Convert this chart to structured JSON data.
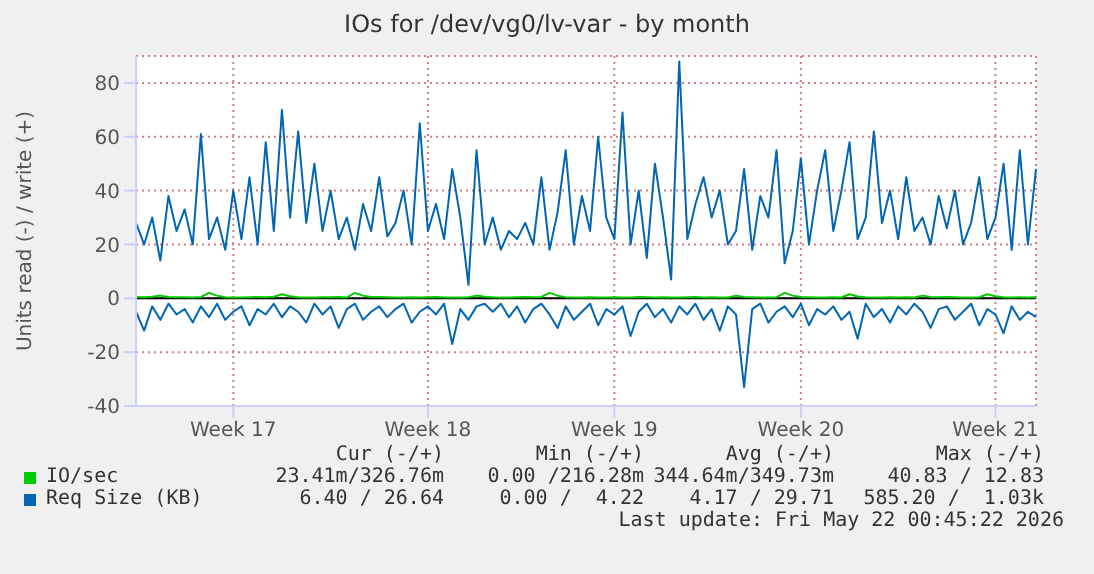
{
  "chart_data": {
    "type": "line",
    "title": "IOs for /dev/vg0/lv-var - by month",
    "ylabel": "Units read (-) / write (+)",
    "categories": [
      null,
      null,
      null,
      null,
      null,
      null,
      null,
      null,
      null,
      null,
      null,
      null,
      "Week 17",
      null,
      null,
      null,
      null,
      null,
      null,
      null,
      null,
      null,
      null,
      null,
      null,
      null,
      null,
      null,
      null,
      null,
      null,
      null,
      null,
      null,
      null,
      null,
      "Week 18",
      null,
      null,
      null,
      null,
      null,
      null,
      null,
      null,
      null,
      null,
      null,
      null,
      null,
      null,
      null,
      null,
      null,
      null,
      null,
      null,
      null,
      null,
      "Week 19",
      null,
      null,
      null,
      null,
      null,
      null,
      null,
      null,
      null,
      null,
      null,
      null,
      null,
      null,
      null,
      null,
      null,
      null,
      null,
      null,
      null,
      null,
      "Week 20",
      null,
      null,
      null,
      null,
      null,
      null,
      null,
      null,
      null,
      null,
      null,
      null,
      null,
      null,
      null,
      null,
      null,
      null,
      null,
      null,
      null,
      null,
      null,
      "Week 21",
      null,
      null,
      null,
      null,
      null
    ],
    "series": [
      {
        "name": "IO/sec",
        "color": "#00cc00",
        "values": [
          0.5,
          0.4,
          0.6,
          1,
          0.5,
          0.4,
          0.4,
          0.3,
          0.5,
          2,
          1,
          0.4,
          0.3,
          0.3,
          0.4,
          0.5,
          0.4,
          0.6,
          1.5,
          0.8,
          0.4,
          0.3,
          0.3,
          0.4,
          0.4,
          0.5,
          0.3,
          2,
          1,
          0.5,
          0.5,
          0.4,
          0.3,
          0.3,
          0.4,
          0.3,
          0.4,
          0.5,
          0.3,
          0.3,
          0.3,
          0.4,
          1,
          0.6,
          0.4,
          0.3,
          0.3,
          0.4,
          0.5,
          0.4,
          0.5,
          2,
          1,
          0.4,
          0.3,
          0.3,
          0.4,
          0.3,
          0.3,
          0.4,
          0.3,
          0.3,
          0.5,
          0.4,
          0.3,
          0.4,
          0.3,
          0.3,
          0.4,
          0.5,
          0.3,
          0.4,
          0.3,
          0.3,
          1,
          0.5,
          0.4,
          0.3,
          0.3,
          0.4,
          2,
          1,
          0.5,
          0.4,
          0.3,
          0.3,
          0.4,
          0.3,
          1.5,
          0.7,
          0.4,
          0.3,
          0.3,
          0.4,
          0.3,
          0.4,
          0.3,
          1,
          0.5,
          0.4,
          0.5,
          0.4,
          0.3,
          0.3,
          0.4,
          1.5,
          0.8,
          0.4,
          0.3,
          0.4,
          0.3,
          0.4
        ]
      },
      {
        "name": "Req Size (KB)",
        "color": "#0066b3",
        "values": [
          28,
          20,
          30,
          14,
          38,
          25,
          33,
          20,
          61,
          22,
          30,
          18,
          40,
          22,
          45,
          20,
          58,
          25,
          70,
          30,
          62,
          28,
          50,
          25,
          40,
          22,
          30,
          18,
          35,
          25,
          45,
          23,
          28,
          40,
          20,
          65,
          25,
          35,
          22,
          48,
          30,
          5,
          55,
          20,
          30,
          18,
          25,
          22,
          28,
          20,
          45,
          18,
          32,
          55,
          20,
          38,
          25,
          60,
          30,
          22,
          69,
          20,
          40,
          15,
          50,
          30,
          7,
          88,
          22,
          35,
          45,
          30,
          40,
          20,
          25,
          48,
          18,
          38,
          30,
          55,
          13,
          25,
          52,
          20,
          40,
          55,
          25,
          40,
          58,
          22,
          30,
          62,
          28,
          40,
          22,
          45,
          25,
          30,
          20,
          38,
          26,
          40,
          20,
          28,
          45,
          22,
          30,
          50,
          18,
          55,
          20,
          48
        ]
      },
      {
        "color": "#0066b3",
        "values": [
          -5,
          -12,
          -3,
          -8,
          -2,
          -6,
          -4,
          -9,
          -3,
          -7,
          -2,
          -8,
          -5,
          -3,
          -10,
          -4,
          -6,
          -2,
          -7,
          -3,
          -5,
          -9,
          -2,
          -6,
          -3,
          -11,
          -4,
          -2,
          -8,
          -5,
          -3,
          -7,
          -4,
          -2,
          -9,
          -5,
          -3,
          -6,
          -2,
          -17,
          -4,
          -8,
          -3,
          -2,
          -5,
          -2,
          -7,
          -3,
          -9,
          -4,
          -2,
          -6,
          -11,
          -3,
          -8,
          -5,
          -2,
          -10,
          -4,
          -6,
          -3,
          -14,
          -5,
          -2,
          -7,
          -4,
          -9,
          -3,
          -6,
          -2,
          -8,
          -4,
          -12,
          -3,
          -6,
          -33,
          -4,
          -2,
          -9,
          -5,
          -3,
          -7,
          -2,
          -10,
          -4,
          -6,
          -3,
          -8,
          -5,
          -15,
          -2,
          -7,
          -4,
          -9,
          -3,
          -6,
          -2,
          -5,
          -11,
          -4,
          -3,
          -8,
          -5,
          -2,
          -10,
          -4,
          -6,
          -13,
          -3,
          -8,
          -5,
          -7
        ]
      }
    ],
    "ylim": [
      -40,
      90
    ],
    "yticks": [
      -40,
      -20,
      0,
      20,
      40,
      60,
      80
    ],
    "grid": true,
    "legend": "bottom",
    "marker": "none",
    "line_style": "solid",
    "ref_lines": [
      {
        "axis": "y",
        "value": 0,
        "color": "#000000"
      }
    ],
    "annotations": [
      "Cur (-/+)",
      "Min (-/+)",
      "Avg (-/+)",
      "Max (-/+)",
      "23.41m/326.76m",
      "0.00 /216.28m",
      "344.64m/349.73m",
      "40.83 / 12.83",
      "6.40 / 26.64",
      "0.00 /  4.22",
      "4.17 / 29.71",
      "585.20 /  1.03k",
      "Last update: Fri May 22 00:45:22 2026"
    ]
  }
}
